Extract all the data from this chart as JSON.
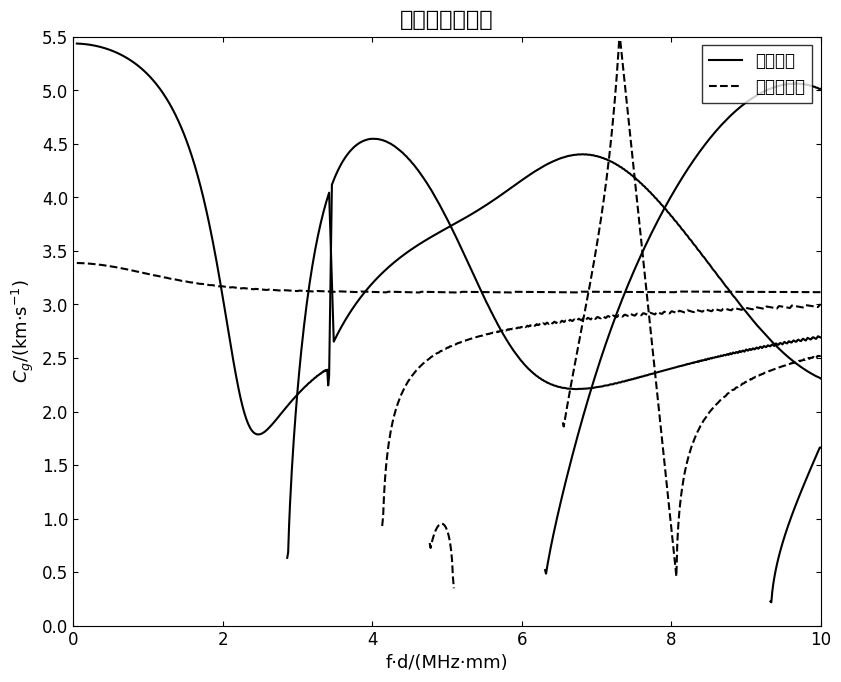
{
  "title": "群速度频散曲线",
  "xlabel": "f·d/(MHz·mm)",
  "ylabel": "C_g/(km·s⁻¹)",
  "xlim": [
    0,
    10
  ],
  "ylim": [
    0,
    5.5
  ],
  "xticks": [
    0,
    2,
    4,
    6,
    8,
    10
  ],
  "yticks": [
    0,
    0.5,
    1.0,
    1.5,
    2.0,
    2.5,
    3.0,
    3.5,
    4.0,
    4.5,
    5.0,
    5.5
  ],
  "legend_sym": "对称模式",
  "legend_anti": "反对称模式",
  "cl": 6.32,
  "ct": 3.13,
  "title_fontsize": 16,
  "label_fontsize": 13,
  "tick_fontsize": 12,
  "legend_fontsize": 12,
  "linewidth": 1.5
}
